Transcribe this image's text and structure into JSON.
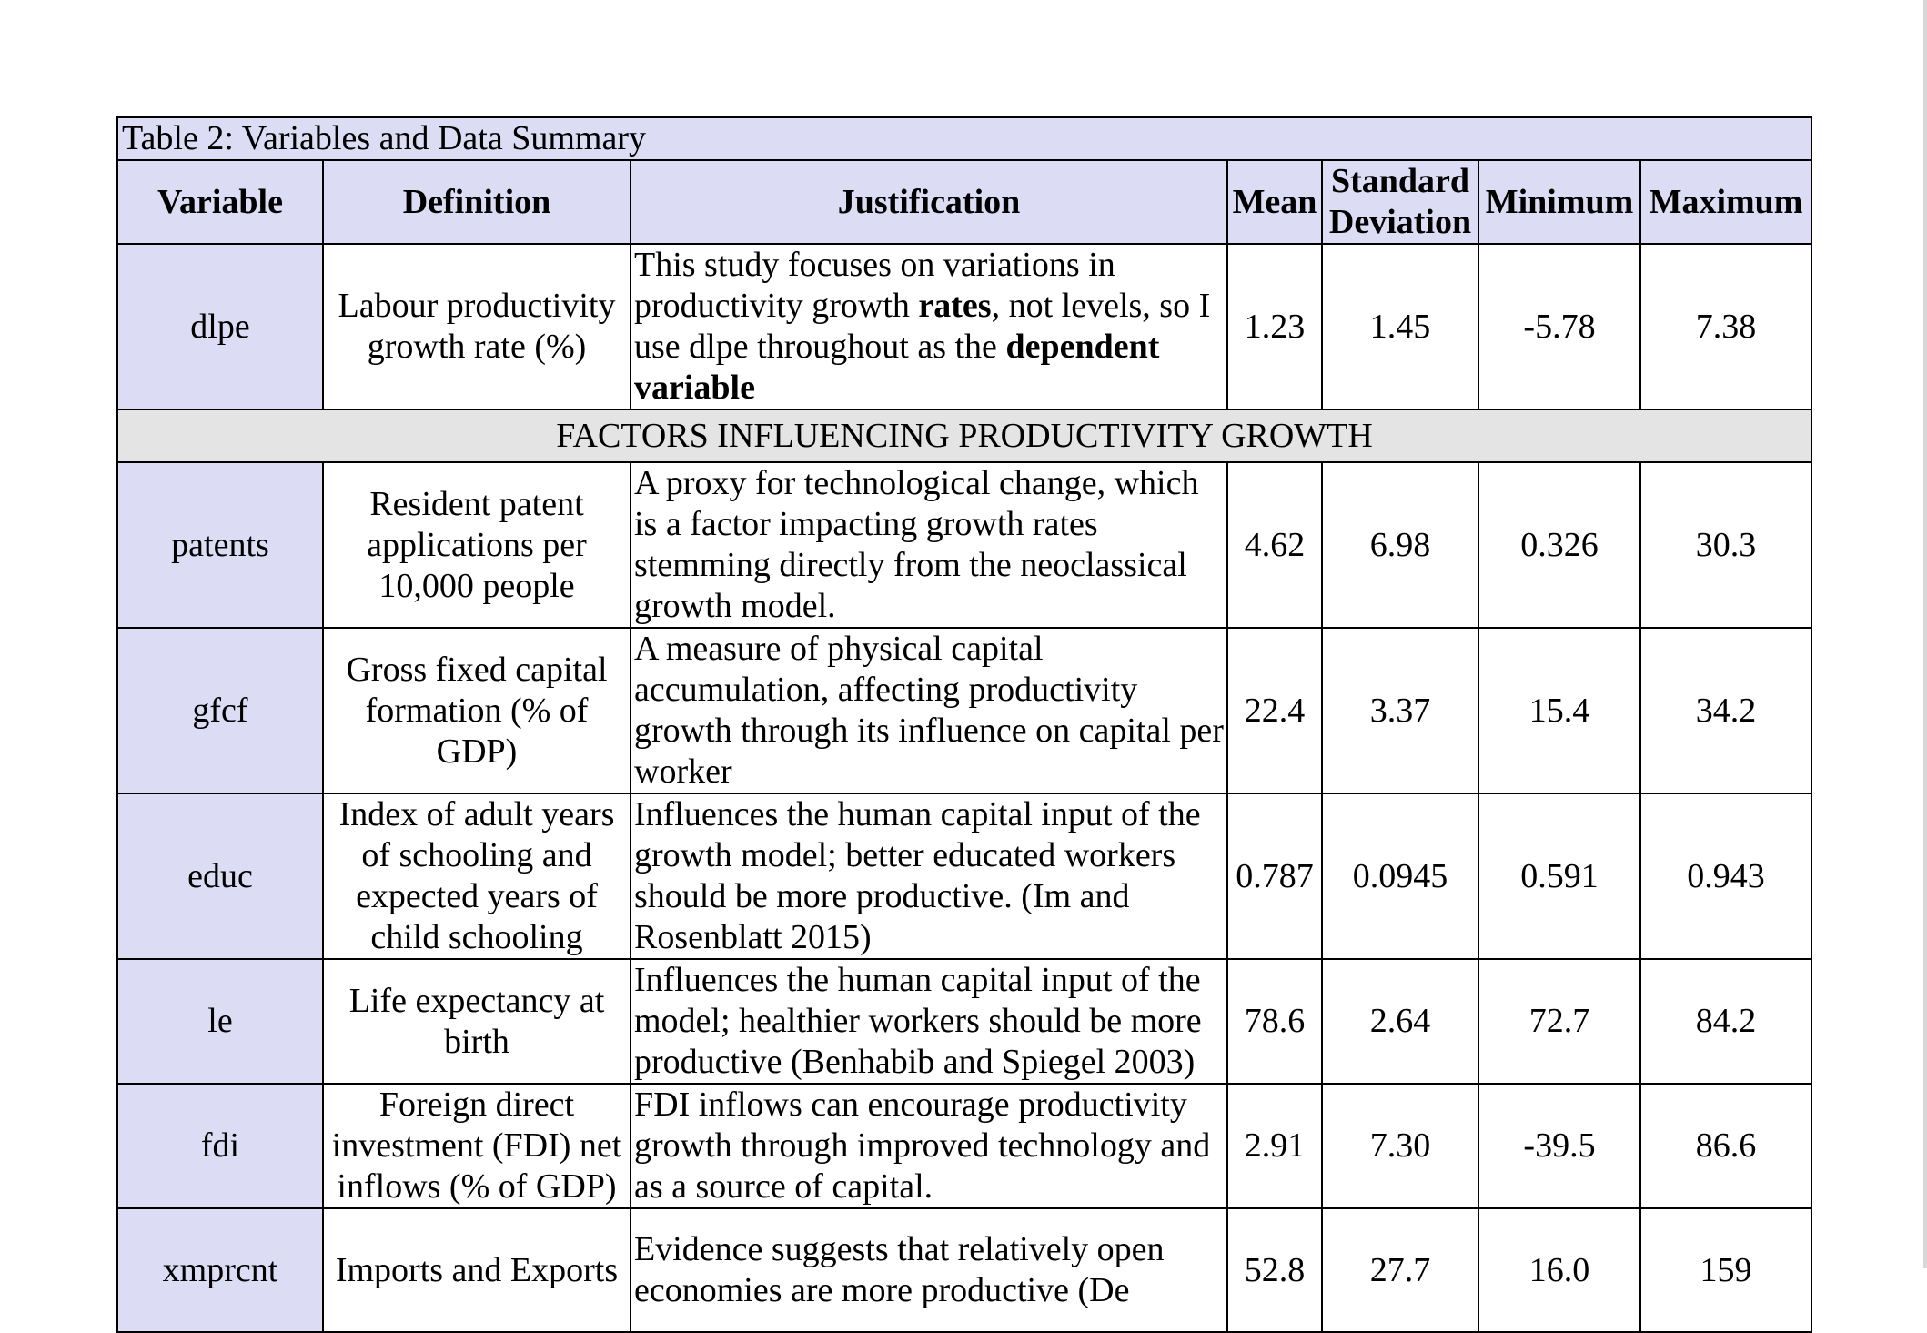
{
  "caption": "Table 2: Variables and Data Summary",
  "headers": {
    "variable": "Variable",
    "definition": "Definition",
    "justification": "Justification",
    "mean": "Mean",
    "std_line1": "Standard",
    "std_line2": "Deviation",
    "minimum": "Minimum",
    "maximum": "Maximum"
  },
  "dependent_row": {
    "variable": "dlpe",
    "definition": "Labour productivity growth rate (%)",
    "justification_parts": {
      "p1": "This study focuses on variations in productivity growth ",
      "b1": "rates",
      "p2": ", not levels, so I use dlpe throughout as the ",
      "b2": "dependent variable"
    },
    "mean": "1.23",
    "std": "1.45",
    "min": "-5.78",
    "max": "7.38"
  },
  "section_title": "FACTORS INFLUENCING PRODUCTIVITY GROWTH",
  "rows": [
    {
      "variable": "patents",
      "definition": "Resident patent applications per 10,000 people",
      "justification": "A proxy for technological change, which is a factor impacting growth rates stemming directly from the neoclassical growth model.",
      "mean": "4.62",
      "std": "6.98",
      "min": "0.326",
      "max": "30.3"
    },
    {
      "variable": "gfcf",
      "definition": "Gross fixed capital formation (% of GDP)",
      "justification": "A measure of physical capital accumulation, affecting productivity growth through its influence on capital per worker",
      "mean": "22.4",
      "std": "3.37",
      "min": "15.4",
      "max": "34.2"
    },
    {
      "variable": "educ",
      "definition": "Index of adult years of schooling and expected years of child schooling",
      "justification": "Influences the human capital input of the growth model; better educated workers should be more productive. (Im and Rosenblatt 2015)",
      "mean": "0.787",
      "std": "0.0945",
      "min": "0.591",
      "max": "0.943"
    },
    {
      "variable": "le",
      "definition": "Life expectancy at birth",
      "justification": "Influences the human capital input of the model; healthier workers should be more productive (Benhabib and Spiegel 2003)",
      "mean": "78.6",
      "std": "2.64",
      "min": "72.7",
      "max": "84.2"
    },
    {
      "variable": "fdi",
      "definition": "Foreign direct investment (FDI) net inflows (% of GDP)",
      "justification": "FDI inflows can encourage productivity growth through improved technology and as a source of capital.",
      "mean": "2.91",
      "std": "7.30",
      "min": "-39.5",
      "max": "86.6"
    },
    {
      "variable": "xmprcnt",
      "definition": "Imports and Exports",
      "justification": "Evidence suggests that relatively open economies are more productive (De",
      "mean": "52.8",
      "std": "27.7",
      "min": "16.0",
      "max": "159"
    }
  ]
}
